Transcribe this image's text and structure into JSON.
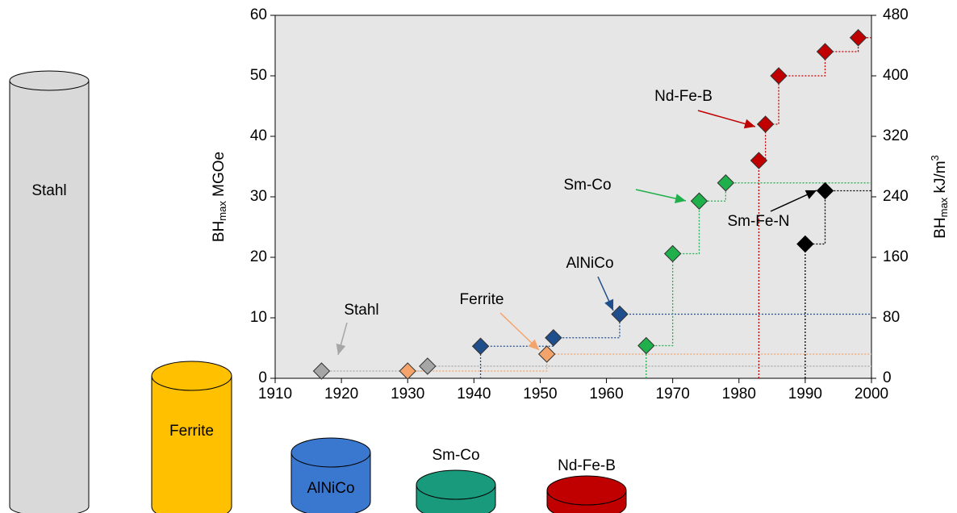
{
  "chart_data": {
    "type": "scatter",
    "xlim": [
      1910,
      2000
    ],
    "xticks": [
      1910,
      1920,
      1930,
      1940,
      1950,
      1960,
      1970,
      1980,
      1990,
      2000
    ],
    "ylim": [
      0,
      60
    ],
    "yticks": [
      0,
      10,
      20,
      30,
      40,
      50,
      60
    ],
    "y2lim": [
      0,
      480
    ],
    "y2ticks": [
      0,
      80,
      160,
      240,
      320,
      400,
      480
    ],
    "ylabel": [
      "BH",
      "max",
      " MGOe"
    ],
    "y2label": [
      "BH",
      "max",
      " kJ/m",
      "3"
    ],
    "series": [
      {
        "name": "Stahl",
        "color": "#a6a6a6",
        "x": [
          1917,
          1933
        ],
        "values": [
          1.2,
          2.0
        ]
      },
      {
        "name": "Ferrite",
        "color": "#f4a46a",
        "x": [
          1930,
          1951
        ],
        "values": [
          1.2,
          4.0
        ]
      },
      {
        "name": "AlNiCo",
        "color": "#1f4e8c",
        "x": [
          1941,
          1952,
          1962
        ],
        "values": [
          5.3,
          6.7,
          10.6
        ]
      },
      {
        "name": "Sm-Co",
        "color": "#1fb04b",
        "x": [
          1966,
          1970,
          1974,
          1978
        ],
        "values": [
          5.4,
          20.6,
          29.3,
          32.3
        ]
      },
      {
        "name": "Nd-Fe-B",
        "color": "#c00000",
        "x": [
          1983,
          1984,
          1986,
          1993,
          1998
        ],
        "values": [
          36,
          42,
          50,
          54,
          56.3
        ]
      },
      {
        "name": "Sm-Fe-N",
        "color": "#000000",
        "x": [
          1990,
          1993
        ],
        "values": [
          22.2,
          31.0
        ]
      }
    ]
  },
  "illustration": {
    "cylinders": [
      {
        "label": "Stahl",
        "color": "#d9d9d9"
      },
      {
        "label": "Ferrite",
        "color": "#ffc000"
      },
      {
        "label": "AlNiCo",
        "color": "#3a78d0"
      },
      {
        "label": "Sm-Co",
        "color": "#1a9a7c"
      },
      {
        "label": "Nd-Fe-B",
        "color": "#c00000"
      }
    ]
  }
}
